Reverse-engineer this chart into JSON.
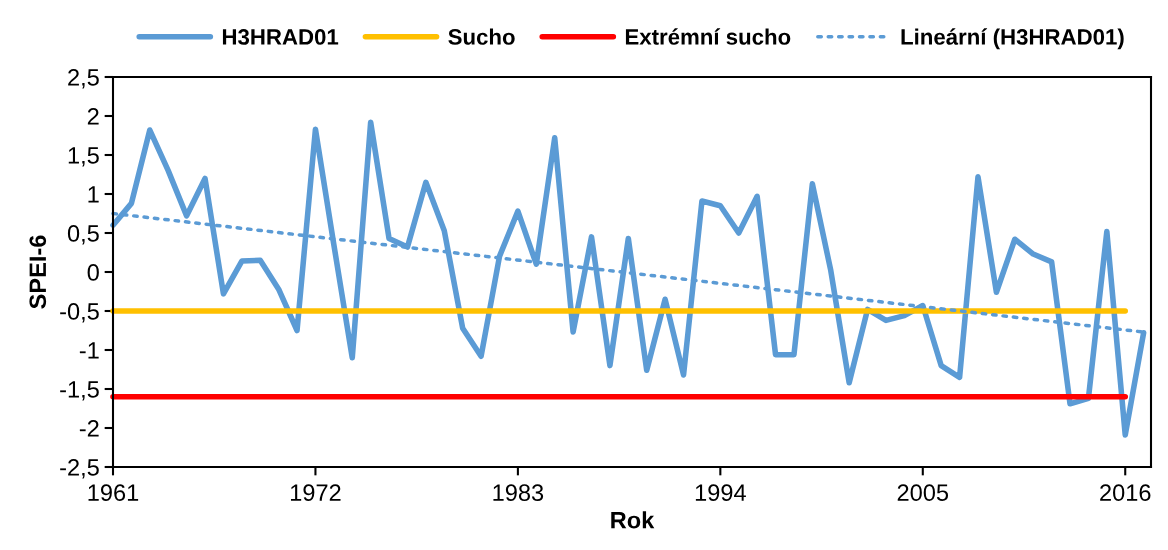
{
  "chart_data": {
    "type": "line",
    "xlabel": "Rok",
    "ylabel": "SPEI-6",
    "x": [
      1961,
      1962,
      1963,
      1964,
      1965,
      1966,
      1967,
      1968,
      1969,
      1970,
      1971,
      1972,
      1973,
      1974,
      1975,
      1976,
      1977,
      1978,
      1979,
      1980,
      1981,
      1982,
      1983,
      1984,
      1985,
      1986,
      1987,
      1988,
      1989,
      1990,
      1991,
      1992,
      1993,
      1994,
      1995,
      1996,
      1997,
      1998,
      1999,
      2000,
      2001,
      2002,
      2003,
      2004,
      2005,
      2006,
      2007,
      2008,
      2009,
      2010,
      2011,
      2012,
      2013,
      2014,
      2015,
      2016,
      2017
    ],
    "series": [
      {
        "name": "H3HRAD01",
        "color": "#5b9bd5",
        "line_style": "solid",
        "values": [
          0.6,
          0.88,
          1.82,
          1.3,
          0.72,
          1.2,
          -0.28,
          0.14,
          0.15,
          -0.22,
          -0.75,
          1.83,
          0.35,
          -1.1,
          1.92,
          0.43,
          0.32,
          1.15,
          0.53,
          -0.72,
          -1.08,
          0.2,
          0.78,
          0.1,
          1.72,
          -0.77,
          0.45,
          -1.2,
          0.43,
          -1.26,
          -0.35,
          -1.32,
          0.91,
          0.85,
          0.5,
          0.97,
          -1.06,
          -1.06,
          1.13,
          0.02,
          -1.42,
          -0.48,
          -0.62,
          -0.56,
          -0.43,
          -1.2,
          -1.35,
          1.22,
          -0.26,
          0.42,
          0.23,
          0.13,
          -1.69,
          -1.62,
          0.52,
          -2.09,
          -0.78
        ]
      },
      {
        "name": "Sucho",
        "color": "#ffc000",
        "line_style": "solid",
        "x": [
          1961,
          2016
        ],
        "values": [
          -0.5,
          -0.5
        ]
      },
      {
        "name": "Extrémní sucho",
        "color": "#ff0000",
        "line_style": "solid",
        "x": [
          1961,
          2016
        ],
        "values": [
          -1.6,
          -1.6
        ]
      },
      {
        "name": "Lineární (H3HRAD01)",
        "color": "#5b9bd5",
        "line_style": "dotted",
        "x": [
          1961,
          2017
        ],
        "values": [
          0.75,
          -0.77
        ]
      }
    ],
    "xlim": [
      1961,
      2017.4
    ],
    "xticks": [
      1961,
      1972,
      1983,
      1994,
      2005,
      2016
    ],
    "ylim": [
      -2.5,
      2.5
    ],
    "yticks": [
      {
        "value": -2.5,
        "label": "-2,5"
      },
      -2,
      {
        "value": -1.5,
        "label": "-1,5"
      },
      -1,
      {
        "value": -0.5,
        "label": "-0,5"
      },
      0,
      {
        "value": 0.5,
        "label": "0,5"
      },
      1,
      {
        "value": 1.5,
        "label": "1,5"
      },
      2,
      {
        "value": 2.5,
        "label": "2,5"
      }
    ],
    "grid": false,
    "legend": "top",
    "marker": "none"
  }
}
